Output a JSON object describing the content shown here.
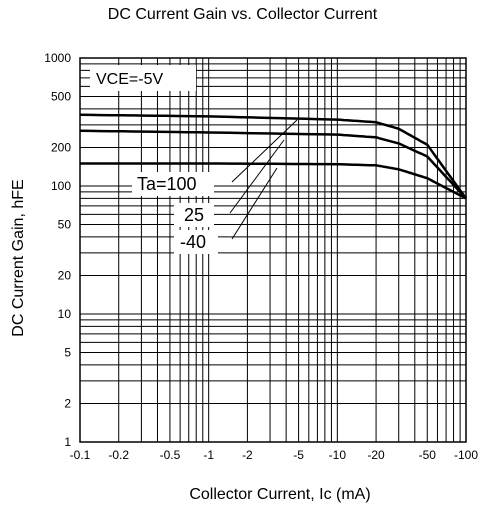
{
  "chart_data": {
    "type": "line",
    "title": "DC Current Gain vs. Collector Current",
    "xlabel": "Collector Current, Ic (mA)",
    "ylabel": "DC Current Gain,  hFE",
    "x_scale": "log",
    "y_scale": "log",
    "xlim": [
      -0.1,
      -100
    ],
    "ylim": [
      1,
      1000
    ],
    "x_ticks": [
      "-0.1",
      "-0.2",
      "-0.5",
      "-1",
      "-2",
      "-5",
      "-10",
      "-20",
      "-50",
      "-100"
    ],
    "y_ticks": [
      "1",
      "2",
      "5",
      "10",
      "20",
      "50",
      "100",
      "200",
      "500",
      "1000"
    ],
    "grid": true,
    "condition_label": "VCE=-5V",
    "series": [
      {
        "name": "Ta=100",
        "x": [
          -0.1,
          -1,
          -10,
          -20,
          -30,
          -50,
          -100
        ],
        "y": [
          360,
          350,
          330,
          315,
          280,
          210,
          80
        ]
      },
      {
        "name": "25",
        "x": [
          -0.1,
          -1,
          -10,
          -20,
          -30,
          -50,
          -100
        ],
        "y": [
          270,
          262,
          252,
          240,
          215,
          170,
          80
        ]
      },
      {
        "name": "-40",
        "x": [
          -0.1,
          -1,
          -10,
          -20,
          -30,
          -50,
          -100
        ],
        "y": [
          150,
          150,
          148,
          145,
          135,
          115,
          80
        ]
      }
    ]
  }
}
